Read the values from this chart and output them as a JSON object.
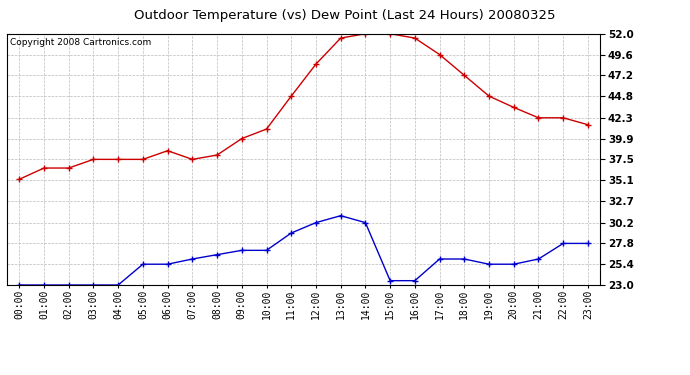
{
  "title": "Outdoor Temperature (vs) Dew Point (Last 24 Hours) 20080325",
  "copyright": "Copyright 2008 Cartronics.com",
  "hours": [
    "00:00",
    "01:00",
    "02:00",
    "03:00",
    "04:00",
    "05:00",
    "06:00",
    "07:00",
    "08:00",
    "09:00",
    "10:00",
    "11:00",
    "12:00",
    "13:00",
    "14:00",
    "15:00",
    "16:00",
    "17:00",
    "18:00",
    "19:00",
    "20:00",
    "21:00",
    "22:00",
    "23:00"
  ],
  "temp": [
    35.2,
    36.5,
    36.5,
    37.5,
    37.5,
    37.5,
    38.5,
    37.5,
    38.0,
    39.9,
    41.0,
    44.8,
    48.5,
    51.5,
    52.0,
    52.0,
    51.5,
    49.6,
    47.2,
    44.8,
    43.5,
    42.3,
    42.3,
    41.5
  ],
  "dew": [
    23.0,
    23.0,
    23.0,
    23.0,
    23.0,
    25.4,
    25.4,
    26.0,
    26.5,
    27.0,
    27.0,
    29.0,
    30.2,
    31.0,
    30.2,
    23.5,
    23.5,
    26.0,
    26.0,
    25.4,
    25.4,
    26.0,
    27.8,
    27.8
  ],
  "temp_color": "#cc0000",
  "dew_color": "#0000cc",
  "bg_color": "#ffffff",
  "plot_bg": "#ffffff",
  "grid_color": "#bbbbbb",
  "ylim_min": 23.0,
  "ylim_max": 52.0,
  "yticks": [
    23.0,
    25.4,
    27.8,
    30.2,
    32.7,
    35.1,
    37.5,
    39.9,
    42.3,
    44.8,
    47.2,
    49.6,
    52.0
  ],
  "title_fontsize": 9.5,
  "copyright_fontsize": 6.5,
  "tick_fontsize": 7,
  "ytick_fontsize": 7.5
}
